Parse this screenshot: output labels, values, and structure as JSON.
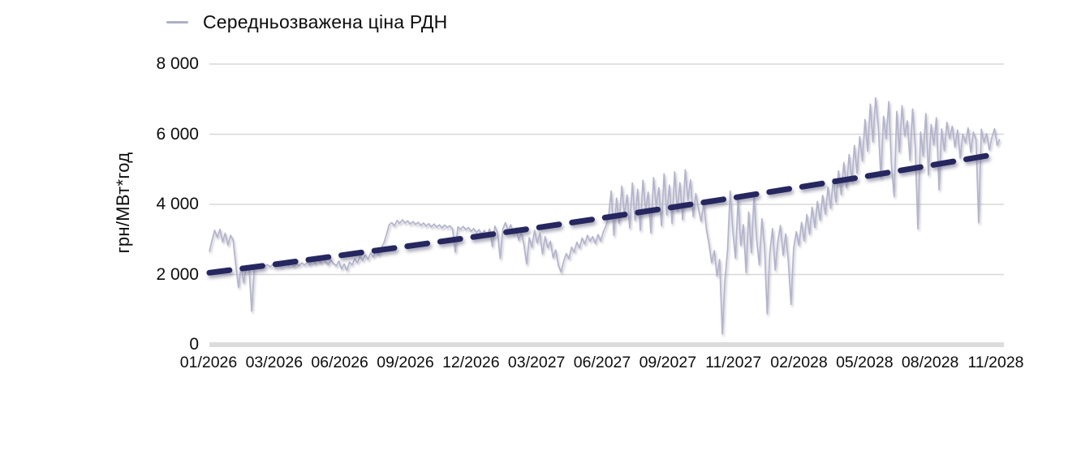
{
  "legend": {
    "label": "Середньозважена ціна РДН"
  },
  "colors": {
    "series_line": "#b3b4cc",
    "trend_line": "#282861",
    "gridline": "#d8d8d8",
    "axis_bar": "#dcdcdc",
    "text": "#0d0d0d",
    "legend_marker": "#aeb0c8"
  },
  "chart_data": {
    "type": "line",
    "title": "",
    "xlabel": "",
    "ylabel": "грн/МВт*год",
    "ylim": [
      0,
      8000
    ],
    "grid": "horizontal",
    "legend_position": "top-left",
    "y_ticks": {
      "values": [
        0,
        2000,
        4000,
        6000,
        8000
      ],
      "labels": [
        "0",
        "2 000",
        "4 000",
        "6 000",
        "8 000"
      ]
    },
    "x_tick_labels": [
      "01/2026",
      "03/2026",
      "06/2026",
      "09/2026",
      "12/2026",
      "03/2027",
      "06/2027",
      "09/2027",
      "11/2027",
      "02/2028",
      "05/2028",
      "08/2028",
      "11/2028"
    ],
    "x_range": {
      "start": "01/2026",
      "end": "12/2028",
      "sampling": "evenly spaced daily price series, values estimated from pixels"
    },
    "series": [
      {
        "id": "day-ahead-price",
        "name": "Середньозважена ціна РДН",
        "style": "solid",
        "color": "#b3b4cc",
        "values": [
          2650,
          2980,
          3260,
          3060,
          3290,
          2930,
          3180,
          2840,
          3120,
          2980,
          2250,
          1640,
          2230,
          1760,
          2260,
          2190,
          960,
          2210,
          2280,
          2230,
          2300,
          2250,
          2280,
          2220,
          2290,
          2240,
          2310,
          2230,
          2270,
          2320,
          2250,
          2300,
          2230,
          2290,
          2260,
          2330,
          2270,
          2350,
          2280,
          2400,
          2310,
          2430,
          2330,
          2460,
          2360,
          2280,
          2420,
          2310,
          2250,
          2380,
          2160,
          2300,
          2120,
          2350,
          2280,
          2450,
          2340,
          2520,
          2400,
          2560,
          2430,
          2620,
          2500,
          2700,
          2570,
          2760,
          2900,
          3150,
          3420,
          3480,
          3390,
          3540,
          3460,
          3560,
          3470,
          3530,
          3440,
          3510,
          3430,
          3490,
          3400,
          3470,
          3380,
          3450,
          3360,
          3440,
          3350,
          3420,
          3330,
          3410,
          3340,
          3390,
          3300,
          2640,
          3360,
          3290,
          3370,
          3280,
          3340,
          3230,
          3310,
          3190,
          3280,
          3140,
          3260,
          3120,
          3300,
          2800,
          3380,
          3180,
          2460,
          3300,
          3480,
          3250,
          3420,
          3150,
          3330,
          2980,
          3200,
          2850,
          2300,
          3050,
          2780,
          3260,
          2900,
          3180,
          2590,
          3080,
          2760,
          2950,
          2480,
          2700,
          2270,
          2070,
          2380,
          2600,
          2450,
          2780,
          2640,
          2920,
          2760,
          3040,
          2870,
          3120,
          2950,
          3080,
          2890,
          3140,
          2960,
          3220,
          3380,
          3650,
          4380,
          3120,
          4180,
          3450,
          4520,
          3680,
          4270,
          3330,
          4610,
          3550,
          4430,
          3260,
          4690,
          3820,
          4350,
          3190,
          4760,
          3940,
          4480,
          3390,
          4870,
          3700,
          4550,
          3460,
          4930,
          3810,
          4620,
          3570,
          4990,
          4110,
          4700,
          3650,
          4310,
          3870,
          3520,
          4040,
          3290,
          2870,
          2340,
          2680,
          1960,
          2430,
          310,
          1830,
          2690,
          4380,
          3240,
          2470,
          4160,
          2830,
          3420,
          2060,
          3780,
          2620,
          4250,
          3010,
          2280,
          3590,
          2770,
          880,
          2640,
          3310,
          2130,
          2930,
          3400,
          2550,
          3160,
          2380,
          1150,
          2740,
          3220,
          2830,
          3490,
          2960,
          3710,
          3150,
          3920,
          3340,
          4080,
          3550,
          4260,
          3720,
          4490,
          3890,
          4730,
          4060,
          4960,
          4280,
          5190,
          4470,
          5420,
          4650,
          5680,
          4890,
          5930,
          5240,
          6420,
          5520,
          6860,
          5780,
          7040,
          6240,
          4760,
          6510,
          5870,
          6930,
          5130,
          4230,
          6650,
          5490,
          6810,
          5950,
          6380,
          5260,
          6720,
          5620,
          3310,
          6060,
          5380,
          6590,
          4840,
          6280,
          5700,
          6470,
          4420,
          6150,
          5530,
          6340,
          5880,
          6230,
          5640,
          6120,
          5320,
          6010,
          5760,
          6180,
          5490,
          6060,
          5850,
          3480,
          6140,
          5770,
          6020,
          5560,
          5910,
          6160,
          5690,
          5860
        ]
      },
      {
        "id": "trendline",
        "style": "dashed",
        "color": "#282861",
        "values": [
          2050,
          2290,
          2540,
          2795,
          3055,
          3325,
          3600,
          3885,
          4170,
          4470,
          4770,
          5085,
          5400
        ]
      }
    ]
  }
}
